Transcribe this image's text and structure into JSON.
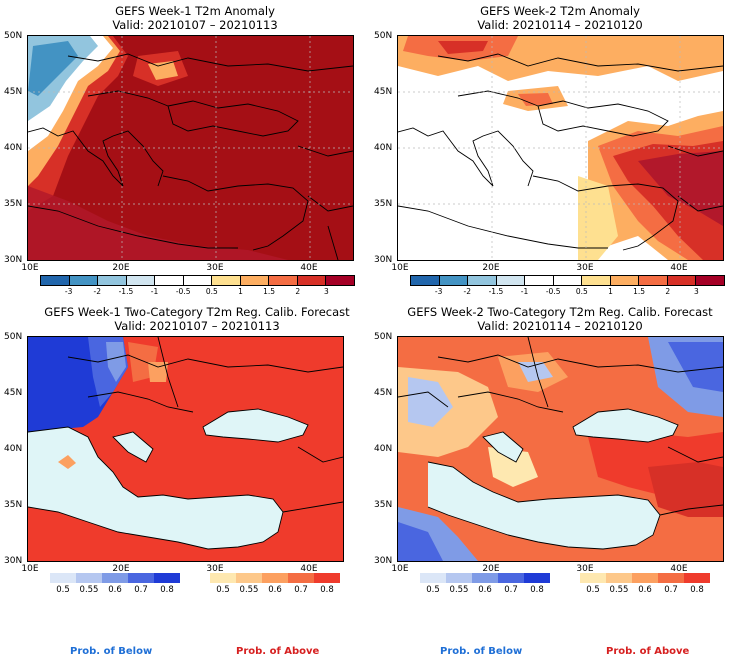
{
  "panels": [
    {
      "id": "p1",
      "title1": "GEFS Week-1 T2m Anomaly",
      "title2": "Valid: 20210107 – 20210113",
      "base_color": "#a50f15",
      "lat_ticks": [
        "50N",
        "45N",
        "40N",
        "35N",
        "30N"
      ],
      "lon_ticks": [
        "10E",
        "20E",
        "30E",
        "40E"
      ]
    },
    {
      "id": "p2",
      "title1": "GEFS Week-2 T2m Anomaly",
      "title2": "Valid: 20210114 – 20210120",
      "base_color": "#ffffff",
      "lat_ticks": [
        "50N",
        "45N",
        "40N",
        "35N",
        "30N"
      ],
      "lon_ticks": [
        "10E",
        "20E",
        "30E",
        "40E"
      ]
    },
    {
      "id": "p3",
      "title1": "GEFS Week-1 Two-Category T2m Reg. Calib. Forecast",
      "title2": "Valid: 20210107 – 20210113",
      "base_color": "#ef3b2c",
      "lat_ticks": [
        "50N",
        "45N",
        "40N",
        "35N",
        "30N"
      ],
      "lon_ticks": [
        "10E",
        "20E",
        "30E",
        "40E"
      ]
    },
    {
      "id": "p4",
      "title1": "GEFS Week-2 Two-Category T2m Reg. Calib. Forecast",
      "title2": "Valid: 20210114 – 20210120",
      "base_color": "#f46d43",
      "lat_ticks": [
        "50N",
        "45N",
        "40N",
        "35N",
        "30N"
      ],
      "lon_ticks": [
        "10E",
        "20E",
        "30E",
        "40E"
      ]
    }
  ],
  "anomaly_colorbar": {
    "colors": [
      "#2166ac",
      "#4393c3",
      "#92c5de",
      "#d1e5f0",
      "#ffffff",
      "#ffffff",
      "#fee090",
      "#fdae61",
      "#f46d43",
      "#d73027",
      "#a50026"
    ],
    "labels": [
      "-3",
      "-2",
      "-1.5",
      "-1",
      "-0.5",
      "0.5",
      "1",
      "1.5",
      "2",
      "3"
    ]
  },
  "prob_below_colorbar": {
    "colors": [
      "#dbe6f7",
      "#b5c7f0",
      "#7f9be6",
      "#4a66e0",
      "#1f3bd6"
    ],
    "labels": [
      "0.5",
      "0.55",
      "0.6",
      "0.7",
      "0.8"
    ]
  },
  "prob_above_colorbar": {
    "colors": [
      "#fee8b0",
      "#fdc88a",
      "#fca060",
      "#f46d43",
      "#ef3b2c"
    ],
    "labels": [
      "0.5",
      "0.55",
      "0.6",
      "0.7",
      "0.8"
    ]
  },
  "legend_labels": {
    "below": "Prob. of Below",
    "above": "Prob. of Above"
  },
  "colors": {
    "sea_fill": "#dff5f7",
    "below_label": "#1f6fd6",
    "above_label": "#d62020"
  }
}
